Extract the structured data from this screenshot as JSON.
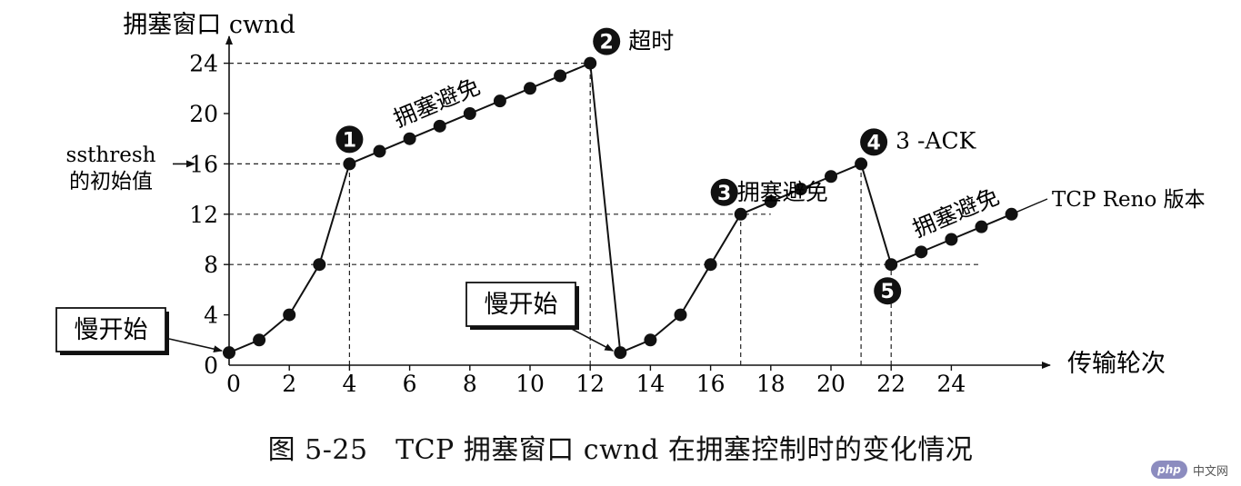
{
  "chart_data": {
    "type": "line",
    "title": "图 5-25　TCP 拥塞窗口 cwnd 在拥塞控制时的变化情况",
    "ylabel": "拥塞窗口  cwnd",
    "xlabel": "传输轮次",
    "x_ticks": [
      0,
      2,
      4,
      6,
      8,
      10,
      12,
      14,
      16,
      18,
      20,
      22,
      24
    ],
    "y_ticks": [
      0,
      4,
      8,
      12,
      16,
      20,
      24
    ],
    "xlim": [
      0,
      27
    ],
    "ylim": [
      0,
      26
    ],
    "grid": false,
    "series": [
      {
        "x": [
          0,
          1,
          2,
          3,
          4,
          5,
          6,
          7,
          8,
          9,
          10,
          11,
          12,
          13,
          14,
          15,
          16,
          17,
          18,
          19,
          20,
          21,
          22,
          23,
          24,
          25,
          26
        ],
        "y": [
          1,
          2,
          4,
          8,
          16,
          17,
          18,
          19,
          20,
          21,
          22,
          23,
          24,
          1,
          2,
          4,
          8,
          12,
          13,
          14,
          15,
          16,
          8,
          9,
          10,
          11,
          12
        ]
      }
    ],
    "reference_lines": [
      {
        "y": 24,
        "x_to": 12
      },
      {
        "y": 16,
        "x_to": 4
      },
      {
        "y": 12,
        "x_to": 18
      },
      {
        "y": 8,
        "x_to": 25
      },
      {
        "x": 4,
        "y_to": 16
      },
      {
        "x": 12,
        "y_to": 24
      },
      {
        "x": 17,
        "y_to": 12
      },
      {
        "x": 21,
        "y_to": 16
      },
      {
        "x": 22,
        "y_to": 8
      }
    ],
    "ssthresh_label_lines": [
      "ssthresh",
      "的初始值"
    ],
    "annotations": [
      {
        "id": "m1",
        "marker": "1",
        "text": "",
        "x": 4,
        "y": 16
      },
      {
        "id": "m2",
        "marker": "2",
        "text": "超时",
        "x": 12,
        "y": 24
      },
      {
        "id": "m3",
        "marker": "3",
        "text": "拥塞避免",
        "x": 17,
        "y": 12
      },
      {
        "id": "m4",
        "marker": "4",
        "text": "3 -ACK",
        "x": 21,
        "y": 16
      },
      {
        "id": "m5",
        "marker": "5",
        "text": "",
        "x": 22,
        "y": 8
      }
    ],
    "line_labels": [
      {
        "text": "拥塞避免",
        "x_from": 5,
        "x_to": 9,
        "y_from": 17,
        "y_to": 21
      },
      {
        "text": "拥塞避免",
        "x_from": 22.5,
        "x_to": 26,
        "y_from": 8.5,
        "y_to": 12
      }
    ],
    "series_label": "TCP Reno 版本",
    "boxes": [
      {
        "text": "慢开始",
        "points_to": [
          0,
          1
        ]
      },
      {
        "text": "慢开始",
        "points_to": [
          13,
          1
        ]
      }
    ]
  },
  "watermark": {
    "logo": "php",
    "text": "中文网"
  }
}
